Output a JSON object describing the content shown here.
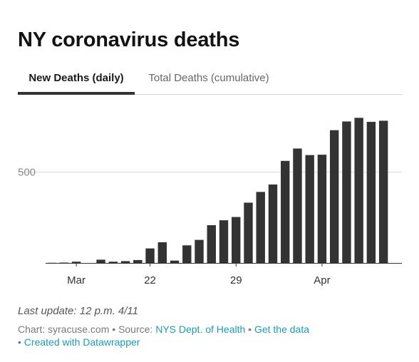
{
  "title": "NY coronavirus deaths",
  "tabs": [
    {
      "label": "New Deaths (daily)",
      "active": true
    },
    {
      "label": "Total Deaths (cumulative)",
      "active": false
    }
  ],
  "colors": {
    "bar": "#333333",
    "gridline": "#d9d9d9",
    "baseline": "#333333",
    "link": "#1c9bb5"
  },
  "chart_data": {
    "type": "bar",
    "title": "",
    "xlabel": "",
    "ylabel": "",
    "categories": [
      "3/14",
      "3/15",
      "3/16",
      "3/17",
      "3/18",
      "3/19",
      "3/20",
      "3/21",
      "3/22",
      "3/23",
      "3/24",
      "3/25",
      "3/26",
      "3/27",
      "3/28",
      "3/29",
      "3/30",
      "3/31",
      "4/1",
      "4/2",
      "4/3",
      "4/4",
      "4/5",
      "4/6",
      "4/7",
      "4/8",
      "4/9",
      "4/10",
      "4/11"
    ],
    "values": [
      1,
      2,
      7,
      0,
      18,
      7,
      10,
      16,
      80,
      114,
      13,
      97,
      127,
      208,
      235,
      253,
      332,
      391,
      432,
      562,
      630,
      594,
      596,
      731,
      779,
      799,
      777,
      783,
      null
    ],
    "x_tick_labels": [
      {
        "label": "Mar",
        "category": "3/16"
      },
      {
        "label": "22",
        "category": "3/22"
      },
      {
        "label": "29",
        "category": "3/29"
      },
      {
        "label": "Apr",
        "category": "4/5"
      }
    ],
    "y_tick_labels": [
      "500"
    ],
    "y_ticks": [
      500
    ],
    "ylim": [
      0,
      820
    ],
    "grid": true,
    "legend": "none"
  },
  "footer": {
    "last_update": "Last update: 12 p.m. 4/11",
    "chart_credit": "Chart: syracuse.com",
    "separator": " • ",
    "source_prefix": "Source: ",
    "source_link": "NYS Dept. of Health",
    "get_data": "Get the data",
    "bullet": "• ",
    "created_with": "Created with Datawrapper"
  }
}
